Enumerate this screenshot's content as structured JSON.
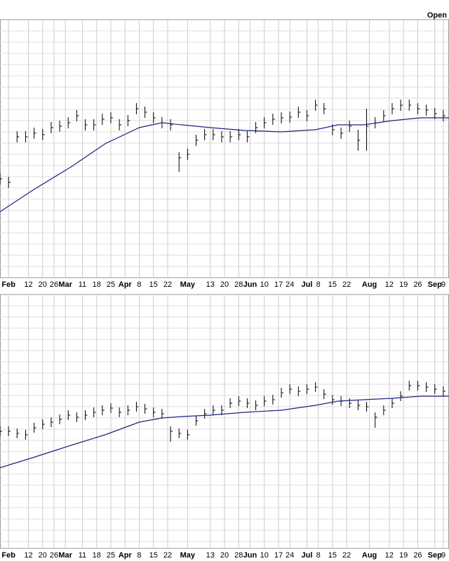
{
  "chart_data": [
    {
      "type": "ohlc",
      "title": "Open",
      "color": "#000000",
      "grid": true,
      "xlim": [
        0,
        158
      ],
      "ylim": [
        4,
        372
      ],
      "xticks": [
        {
          "value": 3,
          "label": "Feb"
        },
        {
          "value": 10,
          "label": "12"
        },
        {
          "value": 15,
          "label": "20"
        },
        {
          "value": 19,
          "label": "26"
        },
        {
          "value": 23,
          "label": "Mar"
        },
        {
          "value": 29,
          "label": "11"
        },
        {
          "value": 34,
          "label": "18"
        },
        {
          "value": 39,
          "label": "25"
        },
        {
          "value": 44,
          "label": "Apr"
        },
        {
          "value": 49,
          "label": "8"
        },
        {
          "value": 54,
          "label": "15"
        },
        {
          "value": 59,
          "label": "22"
        },
        {
          "value": 66,
          "label": "May"
        },
        {
          "value": 74,
          "label": "13"
        },
        {
          "value": 79,
          "label": "20"
        },
        {
          "value": 84,
          "label": "28"
        },
        {
          "value": 88,
          "label": "Jun"
        },
        {
          "value": 93,
          "label": "10"
        },
        {
          "value": 98,
          "label": "17"
        },
        {
          "value": 102,
          "label": "24"
        },
        {
          "value": 108,
          "label": "Jul"
        },
        {
          "value": 112,
          "label": "8"
        },
        {
          "value": 117,
          "label": "15"
        },
        {
          "value": 122,
          "label": "22"
        },
        {
          "value": 130,
          "label": "Aug"
        },
        {
          "value": 137,
          "label": "12"
        },
        {
          "value": 142,
          "label": "19"
        },
        {
          "value": 147,
          "label": "26"
        },
        {
          "value": 153,
          "label": "Sep"
        },
        {
          "value": 156,
          "label": "9"
        }
      ],
      "x": [
        0,
        3,
        6,
        9,
        12,
        15,
        18,
        21,
        24,
        27,
        30,
        33,
        36,
        39,
        42,
        45,
        48,
        51,
        54,
        57,
        60,
        63,
        66,
        69,
        72,
        75,
        78,
        81,
        84,
        87,
        90,
        93,
        96,
        99,
        102,
        105,
        108,
        111,
        114,
        117,
        120,
        123,
        126,
        129,
        132,
        135,
        138,
        141,
        144,
        147,
        150,
        153,
        156
      ],
      "high": [
        153,
        148,
        213,
        213,
        218,
        216,
        226,
        228,
        233,
        243,
        230,
        230,
        238,
        240,
        230,
        236,
        253,
        248,
        240,
        233,
        230,
        183,
        188,
        208,
        216,
        216,
        213,
        213,
        216,
        213,
        226,
        233,
        238,
        240,
        241,
        248,
        243,
        258,
        253,
        223,
        218,
        228,
        215,
        245,
        233,
        243,
        253,
        258,
        258,
        253,
        251,
        246,
        243
      ],
      "low": [
        137,
        132,
        197,
        197,
        202,
        200,
        210,
        212,
        217,
        227,
        214,
        214,
        222,
        224,
        214,
        220,
        237,
        232,
        224,
        217,
        214,
        155,
        172,
        192,
        200,
        200,
        197,
        197,
        200,
        197,
        210,
        217,
        222,
        224,
        225,
        232,
        227,
        242,
        237,
        207,
        202,
        212,
        185,
        185,
        217,
        227,
        237,
        242,
        242,
        237,
        235,
        230,
        227
      ],
      "close": [
        145,
        140,
        205,
        205,
        210,
        208,
        218,
        220,
        225,
        235,
        222,
        222,
        230,
        232,
        222,
        228,
        245,
        240,
        232,
        225,
        222,
        175,
        180,
        200,
        208,
        208,
        205,
        205,
        208,
        205,
        218,
        225,
        230,
        232,
        233,
        240,
        235,
        250,
        245,
        215,
        210,
        220,
        200,
        220,
        225,
        235,
        245,
        250,
        250,
        245,
        243,
        238,
        235
      ],
      "moving_average": {
        "color": "#1a237e",
        "x": [
          0,
          12,
          25,
          37,
          49,
          57,
          64,
          74,
          86,
          99,
          111,
          119,
          128,
          138,
          148,
          158
        ],
        "values": [
          98,
          130,
          162,
          195,
          218,
          225,
          222,
          218,
          214,
          212,
          215,
          222,
          222,
          228,
          232,
          232
        ]
      }
    },
    {
      "type": "ohlc",
      "color": "#000000",
      "grid": true,
      "xlim": [
        0,
        158
      ],
      "ylim": [
        18,
        380
      ],
      "xticks": [
        {
          "value": 3,
          "label": "Feb"
        },
        {
          "value": 10,
          "label": "12"
        },
        {
          "value": 15,
          "label": "20"
        },
        {
          "value": 19,
          "label": "26"
        },
        {
          "value": 23,
          "label": "Mar"
        },
        {
          "value": 29,
          "label": "11"
        },
        {
          "value": 34,
          "label": "18"
        },
        {
          "value": 39,
          "label": "25"
        },
        {
          "value": 44,
          "label": "Apr"
        },
        {
          "value": 49,
          "label": "8"
        },
        {
          "value": 54,
          "label": "15"
        },
        {
          "value": 59,
          "label": "22"
        },
        {
          "value": 66,
          "label": "May"
        },
        {
          "value": 74,
          "label": "13"
        },
        {
          "value": 79,
          "label": "20"
        },
        {
          "value": 84,
          "label": "28"
        },
        {
          "value": 88,
          "label": "Jun"
        },
        {
          "value": 93,
          "label": "10"
        },
        {
          "value": 98,
          "label": "17"
        },
        {
          "value": 102,
          "label": "24"
        },
        {
          "value": 108,
          "label": "Jul"
        },
        {
          "value": 112,
          "label": "8"
        },
        {
          "value": 117,
          "label": "15"
        },
        {
          "value": 122,
          "label": "22"
        },
        {
          "value": 130,
          "label": "Aug"
        },
        {
          "value": 137,
          "label": "12"
        },
        {
          "value": 142,
          "label": "19"
        },
        {
          "value": 147,
          "label": "26"
        },
        {
          "value": 153,
          "label": "Sep"
        },
        {
          "value": 156,
          "label": "9"
        }
      ],
      "x": [
        0,
        3,
        6,
        9,
        12,
        15,
        18,
        21,
        24,
        27,
        30,
        33,
        36,
        39,
        42,
        45,
        48,
        51,
        54,
        57,
        60,
        63,
        66,
        69,
        72,
        75,
        78,
        81,
        84,
        87,
        90,
        93,
        96,
        99,
        102,
        105,
        108,
        111,
        114,
        117,
        120,
        123,
        126,
        129,
        132,
        135,
        138,
        141,
        144,
        147,
        150,
        153,
        156
      ],
      "high": [
        192,
        192,
        189,
        187,
        197,
        202,
        205,
        209,
        215,
        212,
        215,
        219,
        222,
        225,
        219,
        222,
        227,
        224,
        219,
        217,
        192,
        189,
        187,
        207,
        217,
        222,
        222,
        232,
        235,
        232,
        229,
        235,
        237,
        247,
        252,
        249,
        252,
        255,
        245,
        237,
        235,
        232,
        229,
        227,
        212,
        222,
        232,
        242,
        257,
        257,
        255,
        252,
        249
      ],
      "low": [
        178,
        178,
        175,
        173,
        183,
        188,
        191,
        195,
        201,
        198,
        201,
        205,
        208,
        211,
        205,
        208,
        213,
        210,
        205,
        203,
        170,
        175,
        173,
        193,
        203,
        208,
        208,
        218,
        221,
        218,
        215,
        221,
        223,
        233,
        238,
        235,
        238,
        241,
        231,
        223,
        221,
        218,
        215,
        213,
        190,
        208,
        218,
        228,
        243,
        243,
        241,
        238,
        235
      ],
      "close": [
        185,
        185,
        182,
        180,
        190,
        195,
        198,
        202,
        208,
        205,
        208,
        212,
        215,
        218,
        212,
        215,
        220,
        217,
        212,
        210,
        185,
        182,
        180,
        200,
        210,
        215,
        215,
        225,
        228,
        225,
        222,
        228,
        230,
        240,
        245,
        242,
        245,
        248,
        238,
        230,
        228,
        225,
        222,
        220,
        205,
        215,
        225,
        235,
        250,
        250,
        248,
        245,
        242
      ],
      "moving_average": {
        "color": "#1a237e",
        "x": [
          0,
          12,
          25,
          37,
          49,
          57,
          64,
          74,
          86,
          99,
          111,
          119,
          128,
          138,
          148,
          158
        ],
        "values": [
          133,
          148,
          165,
          180,
          198,
          204,
          206,
          208,
          212,
          215,
          222,
          228,
          230,
          232,
          235,
          235
        ]
      }
    }
  ]
}
